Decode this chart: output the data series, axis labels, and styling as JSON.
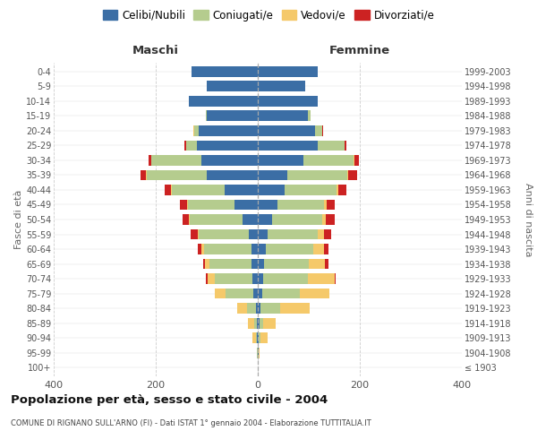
{
  "age_groups": [
    "100+",
    "95-99",
    "90-94",
    "85-89",
    "80-84",
    "75-79",
    "70-74",
    "65-69",
    "60-64",
    "55-59",
    "50-54",
    "45-49",
    "40-44",
    "35-39",
    "30-34",
    "25-29",
    "20-24",
    "15-19",
    "10-14",
    "5-9",
    "0-4"
  ],
  "birth_years": [
    "≤ 1903",
    "1904-1908",
    "1909-1913",
    "1914-1918",
    "1919-1923",
    "1924-1928",
    "1929-1933",
    "1934-1938",
    "1939-1943",
    "1944-1948",
    "1949-1953",
    "1954-1958",
    "1959-1963",
    "1964-1968",
    "1969-1973",
    "1974-1978",
    "1979-1983",
    "1984-1988",
    "1989-1993",
    "1994-1998",
    "1999-2003"
  ],
  "male_celibi": [
    0,
    0,
    1,
    2,
    3,
    8,
    10,
    12,
    13,
    18,
    30,
    45,
    65,
    100,
    110,
    120,
    115,
    100,
    135,
    100,
    130
  ],
  "male_coniugati": [
    0,
    1,
    3,
    5,
    18,
    55,
    75,
    82,
    93,
    98,
    103,
    92,
    103,
    118,
    98,
    20,
    10,
    2,
    0,
    0,
    0
  ],
  "male_vedovi": [
    0,
    1,
    6,
    12,
    20,
    22,
    14,
    10,
    5,
    2,
    2,
    2,
    2,
    1,
    1,
    1,
    1,
    0,
    0,
    0,
    0
  ],
  "male_divorziati": [
    0,
    0,
    0,
    0,
    0,
    0,
    2,
    3,
    6,
    13,
    12,
    14,
    12,
    10,
    5,
    2,
    1,
    0,
    0,
    0,
    0
  ],
  "female_nubili": [
    0,
    1,
    2,
    3,
    5,
    8,
    10,
    12,
    15,
    20,
    28,
    38,
    52,
    58,
    90,
    118,
    112,
    98,
    118,
    93,
    118
  ],
  "female_coniugate": [
    0,
    0,
    3,
    8,
    38,
    75,
    88,
    88,
    93,
    98,
    98,
    92,
    103,
    118,
    98,
    52,
    14,
    5,
    0,
    0,
    0
  ],
  "female_vedove": [
    0,
    2,
    14,
    24,
    58,
    58,
    52,
    32,
    22,
    12,
    8,
    5,
    3,
    2,
    2,
    1,
    1,
    0,
    0,
    0,
    0
  ],
  "female_divorziate": [
    0,
    0,
    0,
    0,
    0,
    0,
    2,
    6,
    8,
    14,
    16,
    16,
    16,
    16,
    8,
    3,
    1,
    0,
    0,
    0,
    0
  ],
  "color_celibi": "#3b6ea5",
  "color_coniugati": "#b5cc8e",
  "color_vedovi": "#f5c96a",
  "color_divorziati": "#cc2222",
  "xlim": 400,
  "title": "Popolazione per età, sesso e stato civile - 2004",
  "subtitle": "COMUNE DI RIGNANO SULL'ARNO (FI) - Dati ISTAT 1° gennaio 2004 - Elaborazione TUTTITALIA.IT",
  "ylabel_left": "Fasce di età",
  "ylabel_right": "Anni di nascita",
  "legend_labels": [
    "Celibi/Nubili",
    "Coniugati/e",
    "Vedovi/e",
    "Divorziati/e"
  ],
  "header_maschi": "Maschi",
  "header_femmine": "Femmine"
}
